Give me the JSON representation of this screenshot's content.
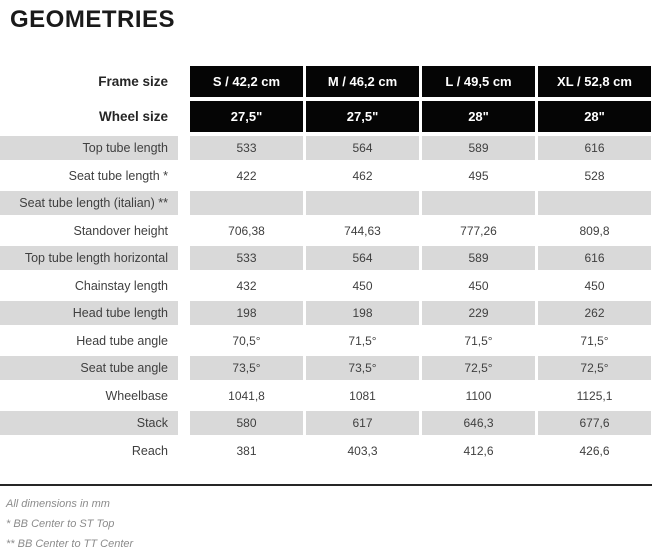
{
  "title": "GEOMETRIES",
  "table": {
    "header_rows": [
      {
        "label": "Frame size",
        "values": [
          "S / 42,2 cm",
          "M / 46,2 cm",
          "L / 49,5 cm",
          "XL / 52,8 cm"
        ]
      },
      {
        "label": "Wheel size",
        "values": [
          "27,5\"",
          "27,5\"",
          "28\"",
          "28\""
        ]
      }
    ],
    "rows": [
      {
        "label": "Top tube length",
        "values": [
          "533",
          "564",
          "589",
          "616"
        ]
      },
      {
        "label": "Seat tube length *",
        "values": [
          "422",
          "462",
          "495",
          "528"
        ]
      },
      {
        "label": "Seat tube length (italian) **",
        "values": [
          "",
          "",
          "",
          ""
        ]
      },
      {
        "label": "Standover height",
        "values": [
          "706,38",
          "744,63",
          "777,26",
          "809,8"
        ]
      },
      {
        "label": "Top tube length horizontal",
        "values": [
          "533",
          "564",
          "589",
          "616"
        ]
      },
      {
        "label": "Chainstay length",
        "values": [
          "432",
          "450",
          "450",
          "450"
        ]
      },
      {
        "label": "Head tube length",
        "values": [
          "198",
          "198",
          "229",
          "262"
        ]
      },
      {
        "label": "Head tube angle",
        "values": [
          "70,5°",
          "71,5°",
          "71,5°",
          "71,5°"
        ]
      },
      {
        "label": "Seat tube angle",
        "values": [
          "73,5°",
          "73,5°",
          "72,5°",
          "72,5°"
        ]
      },
      {
        "label": "Wheelbase",
        "values": [
          "1041,8",
          "1081",
          "1100",
          "1125,1"
        ]
      },
      {
        "label": "Stack",
        "values": [
          "580",
          "617",
          "646,3",
          "677,6"
        ]
      },
      {
        "label": "Reach",
        "values": [
          "381",
          "403,3",
          "412,6",
          "426,6"
        ]
      }
    ]
  },
  "footnotes": [
    "All dimensions in mm",
    "* BB Center to ST Top",
    "** BB Center to TT Center"
  ],
  "colors": {
    "header_bg": "#050505",
    "header_text": "#ffffff",
    "alt_row_bg": "#d9d9d9",
    "body_text": "#3f3f3f",
    "title_text": "#1a1a1a",
    "footnote_text": "#8c8c8c",
    "divider": "#262626"
  }
}
